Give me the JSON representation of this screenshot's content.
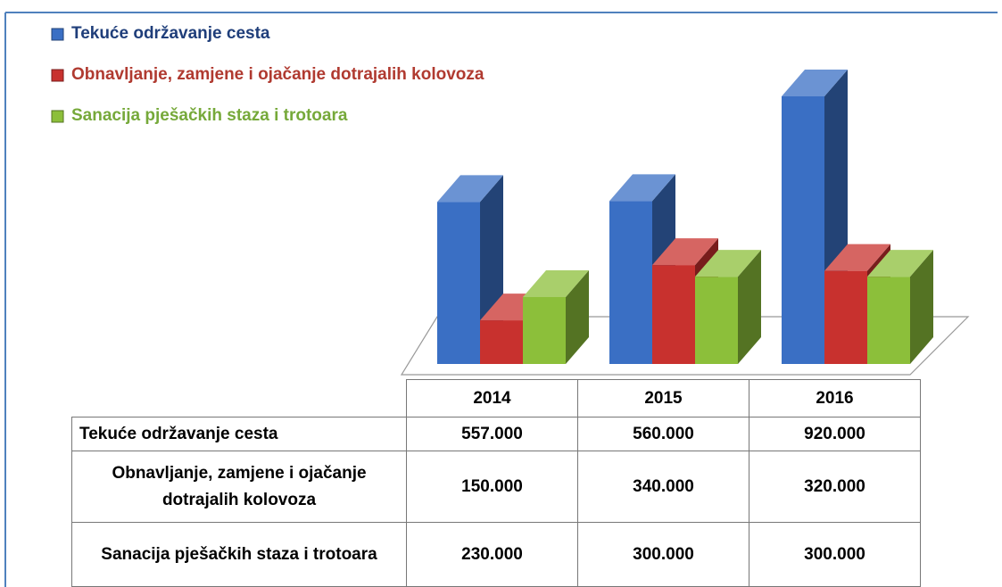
{
  "chart_data": {
    "type": "bar",
    "categories": [
      "2014",
      "2015",
      "2016"
    ],
    "series": [
      {
        "name": "Tekuće održavanje cesta",
        "color": "#3a6fc4",
        "values": [
          557000,
          560000,
          920000
        ],
        "value_labels": [
          "557.000",
          "560.000",
          "920.000"
        ]
      },
      {
        "name": "Obnavljanje, zamjene i ojačanje dotrajalih kolovoza",
        "color": "#c8312e",
        "values": [
          150000,
          340000,
          320000
        ],
        "value_labels": [
          "150.000",
          "340.000",
          "320.000"
        ]
      },
      {
        "name": "Sanacija pješačkih staza i trotoara",
        "color": "#8cbf3a",
        "values": [
          230000,
          300000,
          300000
        ],
        "value_labels": [
          "230.000",
          "300.000",
          "300.000"
        ]
      }
    ]
  }
}
